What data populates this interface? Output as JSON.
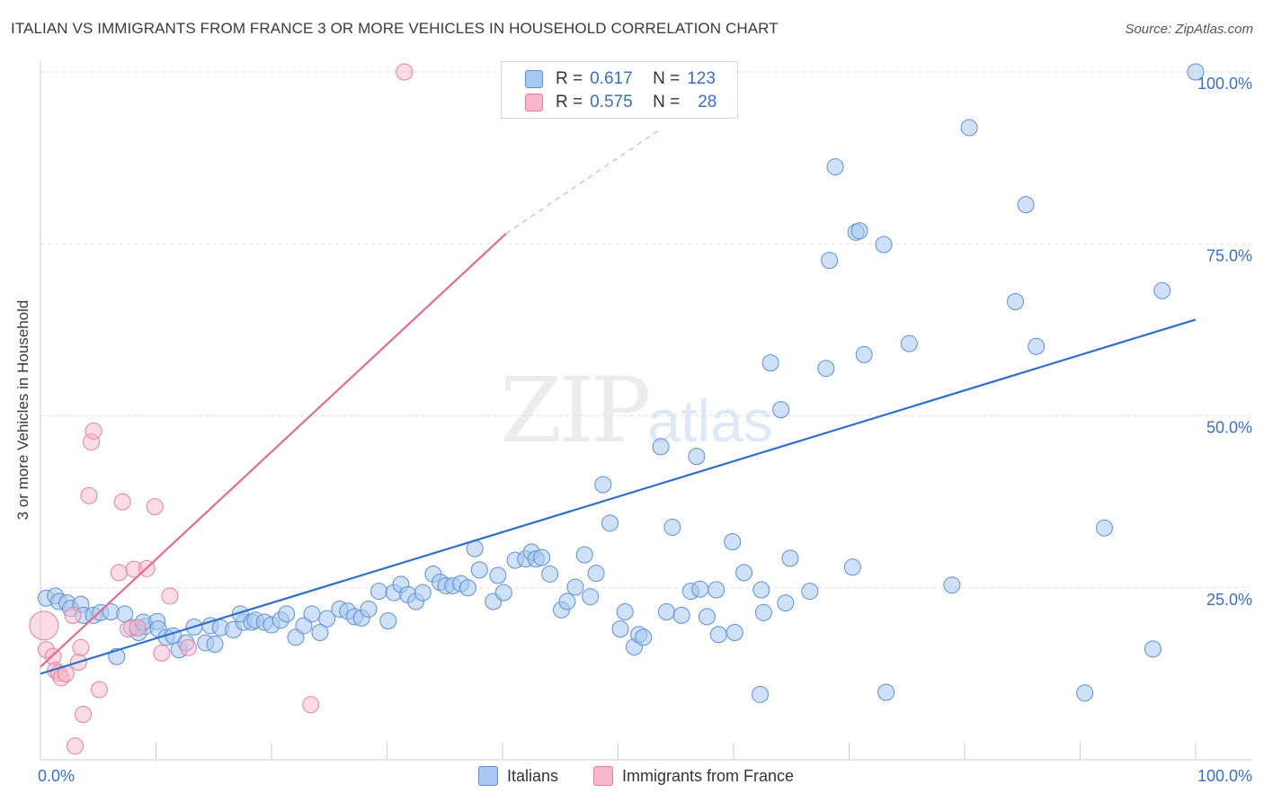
{
  "title": "ITALIAN VS IMMIGRANTS FROM FRANCE 3 OR MORE VEHICLES IN HOUSEHOLD CORRELATION CHART",
  "source": "Source: ZipAtlas.com",
  "watermark_left": "ZIP",
  "watermark_right": "atlas",
  "colors": {
    "blue_fill": "#a8c8f0",
    "blue_stroke": "#5b8fd6",
    "blue_line": "#2f6fd0",
    "pink_fill": "#f7b7cb",
    "pink_stroke": "#e57fa0",
    "pink_line": "#e46a94",
    "axis_label": "#3670c8",
    "grid": "#dddddd"
  },
  "legend": {
    "rows": [
      {
        "r_label": "R = ",
        "r_value": "0.617",
        "n_label": "N = ",
        "n_value": "123"
      },
      {
        "r_label": "R = ",
        "r_value": "0.575",
        "n_label": "N = ",
        "n_value": "28"
      }
    ]
  },
  "bottom_legend": {
    "series1": "Italians",
    "series2": "Immigrants from France"
  },
  "chart_data": {
    "type": "scatter",
    "title": "ITALIAN VS IMMIGRANTS FROM FRANCE 3 OR MORE VEHICLES IN HOUSEHOLD CORRELATION CHART",
    "xlabel": "",
    "ylabel": "3 or more Vehicles in Household",
    "xlim": [
      0,
      100
    ],
    "ylim": [
      0,
      100
    ],
    "x_tick_labels": [
      "0.0%",
      "100.0%"
    ],
    "y_tick_values": [
      25,
      50,
      75,
      100
    ],
    "y_tick_labels": [
      "25.0%",
      "50.0%",
      "75.0%",
      "100.0%"
    ],
    "grid": "horizontal dashed",
    "series": [
      {
        "name": "Italians",
        "r": 0.617,
        "n": 123,
        "trend": {
          "x": [
            0,
            100
          ],
          "y": [
            12.5,
            64
          ]
        },
        "points": [
          [
            0.5,
            23.5
          ],
          [
            1.3,
            23.8
          ],
          [
            1.6,
            23
          ],
          [
            2.3,
            22.8
          ],
          [
            2.6,
            22
          ],
          [
            3.5,
            22.6
          ],
          [
            3.7,
            21
          ],
          [
            4.6,
            21
          ],
          [
            5.2,
            21.4
          ],
          [
            6.1,
            21.5
          ],
          [
            6.6,
            15
          ],
          [
            7.3,
            21.2
          ],
          [
            7.9,
            19.2
          ],
          [
            8.5,
            18.5
          ],
          [
            9.1,
            19.4
          ],
          [
            8.9,
            20
          ],
          [
            10.1,
            20.1
          ],
          [
            10.2,
            19
          ],
          [
            10.9,
            17.8
          ],
          [
            11.5,
            18
          ],
          [
            12.0,
            16
          ],
          [
            12.6,
            17
          ],
          [
            13.3,
            19.3
          ],
          [
            14.3,
            17
          ],
          [
            14.7,
            19.5
          ],
          [
            15.1,
            16.8
          ],
          [
            15.6,
            19.2
          ],
          [
            16.7,
            18.9
          ],
          [
            17.6,
            20
          ],
          [
            17.3,
            21.2
          ],
          [
            18.3,
            20
          ],
          [
            18.6,
            20.3
          ],
          [
            19.4,
            20
          ],
          [
            20.0,
            19.6
          ],
          [
            20.8,
            20.3
          ],
          [
            21.3,
            21.2
          ],
          [
            22.1,
            17.8
          ],
          [
            22.8,
            19.5
          ],
          [
            23.5,
            21.2
          ],
          [
            24.2,
            18.5
          ],
          [
            24.8,
            20.5
          ],
          [
            25.9,
            21.9
          ],
          [
            26.6,
            21.6
          ],
          [
            27.2,
            20.8
          ],
          [
            27.8,
            20.6
          ],
          [
            28.4,
            21.9
          ],
          [
            29.3,
            24.5
          ],
          [
            30.1,
            20.2
          ],
          [
            30.6,
            24.3
          ],
          [
            31.2,
            25.5
          ],
          [
            31.8,
            24
          ],
          [
            32.5,
            23
          ],
          [
            33.1,
            24.3
          ],
          [
            34.0,
            27
          ],
          [
            34.6,
            25.8
          ],
          [
            35.1,
            25.3
          ],
          [
            35.7,
            25.3
          ],
          [
            36.4,
            25.6
          ],
          [
            37.0,
            25
          ],
          [
            37.6,
            30.7
          ],
          [
            38.0,
            27.6
          ],
          [
            39.2,
            23
          ],
          [
            39.6,
            26.8
          ],
          [
            40.1,
            24.3
          ],
          [
            41.1,
            29
          ],
          [
            42.0,
            29.2
          ],
          [
            42.5,
            30.2
          ],
          [
            42.9,
            29.2
          ],
          [
            43.4,
            29.4
          ],
          [
            44.1,
            27
          ],
          [
            45.1,
            21.8
          ],
          [
            45.6,
            23
          ],
          [
            46.3,
            25.1
          ],
          [
            47.1,
            29.8
          ],
          [
            47.6,
            23.7
          ],
          [
            48.1,
            27.1
          ],
          [
            48.7,
            40
          ],
          [
            49.3,
            34.4
          ],
          [
            50.2,
            19
          ],
          [
            50.6,
            21.5
          ],
          [
            51.4,
            16.4
          ],
          [
            51.8,
            18.2
          ],
          [
            52.2,
            17.8
          ],
          [
            53.7,
            45.5
          ],
          [
            54.2,
            21.5
          ],
          [
            54.7,
            33.8
          ],
          [
            55.5,
            21
          ],
          [
            56.3,
            24.5
          ],
          [
            56.8,
            44.1
          ],
          [
            57.1,
            24.8
          ],
          [
            57.7,
            20.8
          ],
          [
            58.5,
            24.7
          ],
          [
            58.7,
            18.2
          ],
          [
            59.9,
            31.7
          ],
          [
            60.1,
            18.5
          ],
          [
            60.9,
            27.2
          ],
          [
            62.3,
            9.5
          ],
          [
            62.4,
            24.7
          ],
          [
            62.6,
            21.4
          ],
          [
            63.2,
            57.7
          ],
          [
            64.1,
            50.9
          ],
          [
            64.5,
            22.8
          ],
          [
            64.9,
            29.3
          ],
          [
            66.6,
            24.5
          ],
          [
            68.0,
            56.9
          ],
          [
            68.3,
            72.6
          ],
          [
            68.8,
            86.2
          ],
          [
            70.3,
            28
          ],
          [
            70.6,
            76.7
          ],
          [
            70.9,
            76.9
          ],
          [
            71.3,
            58.9
          ],
          [
            73.0,
            74.9
          ],
          [
            73.2,
            9.8
          ],
          [
            75.2,
            60.5
          ],
          [
            78.9,
            25.4
          ],
          [
            80.4,
            91.9
          ],
          [
            84.4,
            66.6
          ],
          [
            85.3,
            80.7
          ],
          [
            86.2,
            60.1
          ],
          [
            90.4,
            9.7
          ],
          [
            92.1,
            33.7
          ],
          [
            96.3,
            16.1
          ],
          [
            97.1,
            68.2
          ],
          [
            100,
            100
          ]
        ]
      },
      {
        "name": "Immigrants from France",
        "r": 0.575,
        "n": 28,
        "trend": {
          "x": [
            0,
            40.3
          ],
          "y": [
            13.5,
            76.5
          ]
        },
        "trend_extension": {
          "x": [
            40.3,
            53.5
          ],
          "y": [
            76.5,
            91.5
          ]
        },
        "points": [
          [
            0.3,
            19.5
          ],
          [
            0.5,
            16
          ],
          [
            1.1,
            15
          ],
          [
            1.3,
            13
          ],
          [
            1.6,
            12.6
          ],
          [
            1.8,
            11.9
          ],
          [
            2.2,
            12.5
          ],
          [
            2.8,
            21
          ],
          [
            3.0,
            2
          ],
          [
            3.3,
            14.2
          ],
          [
            3.5,
            16.3
          ],
          [
            3.7,
            6.6
          ],
          [
            4.2,
            38.4
          ],
          [
            4.4,
            46.2
          ],
          [
            4.6,
            47.8
          ],
          [
            5.1,
            10.2
          ],
          [
            6.8,
            27.2
          ],
          [
            7.1,
            37.5
          ],
          [
            7.6,
            19
          ],
          [
            8.1,
            27.7
          ],
          [
            8.4,
            19.2
          ],
          [
            9.2,
            27.8
          ],
          [
            9.9,
            36.8
          ],
          [
            10.5,
            15.5
          ],
          [
            11.2,
            23.8
          ],
          [
            12.8,
            16.3
          ],
          [
            23.4,
            8
          ],
          [
            31.5,
            100
          ]
        ]
      }
    ]
  }
}
